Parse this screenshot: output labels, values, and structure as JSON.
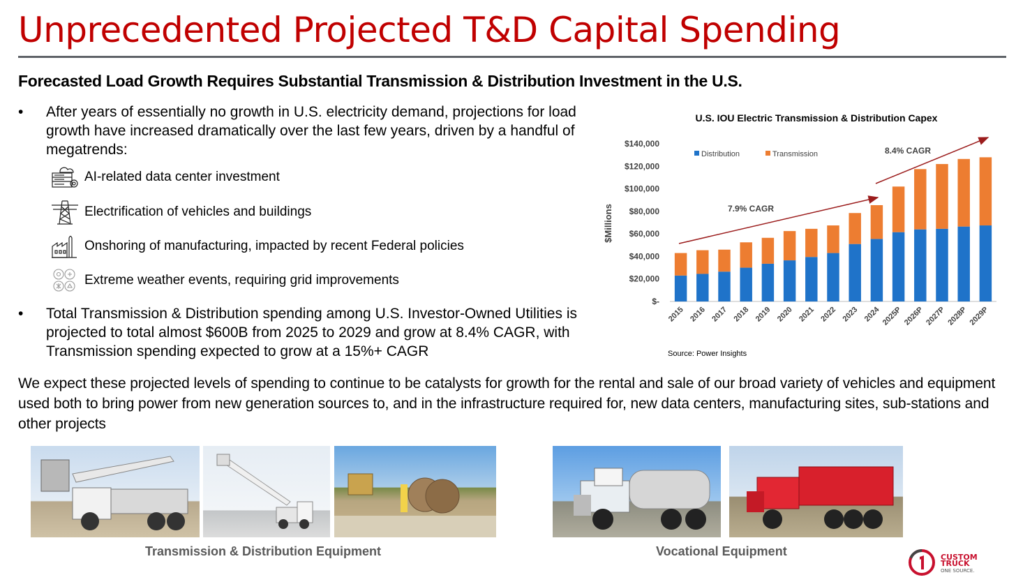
{
  "header": {
    "title": "Unprecedented Projected T&D Capital Spending",
    "subtitle": "Forecasted Load Growth Requires Substantial Transmission & Distribution Investment in the U.S."
  },
  "bullets": [
    {
      "marker": "•",
      "text": "After years of essentially no growth in U.S. electricity demand, projections for load growth have increased dramatically over the last few years, driven by a handful of megatrends:"
    },
    {
      "marker": "•",
      "text": "Total Transmission & Distribution spending among U.S. Investor-Owned Utilities is projected to total almost $600B from 2025 to 2029 and grow at 8.4% CAGR, with Transmission spending expected to grow at a 15%+ CAGR"
    }
  ],
  "megatrends": [
    {
      "icon": "data-center-icon",
      "text": "AI-related data center investment"
    },
    {
      "icon": "transmission-tower-icon",
      "text": "Electrification of vehicles and buildings"
    },
    {
      "icon": "factory-icon",
      "text": "Onshoring of manufacturing, impacted by recent Federal policies"
    },
    {
      "icon": "weather-icon",
      "text": "Extreme weather events, requiring grid improvements"
    }
  ],
  "paragraph": "We expect these projected levels of spending to continue to be catalysts for growth for the rental and sale of our broad variety of vehicles and equipment used both to bring power from new generation sources to, and in the infrastructure required for, new data centers, manufacturing sites, sub-stations and other projects",
  "photos": {
    "group1_caption": "Transmission & Distribution Equipment",
    "group2_caption": "Vocational Equipment"
  },
  "logo": {
    "line1": "CUSTOM",
    "line2": "TRUCK",
    "line3": "ONE SOURCE.",
    "color": "#c8102e"
  },
  "colors": {
    "title": "#c00000",
    "distribution": "#1f73c9",
    "transmission": "#ed7d31",
    "arrow": "#9b1c1c"
  },
  "chart_data": {
    "type": "bar",
    "stacked": true,
    "title": "U.S. IOU Electric Transmission & Distribution Capex",
    "ylabel": "$Millions",
    "xlabel": "",
    "ylim": [
      0,
      140000
    ],
    "yticks": [
      "$-",
      "$20,000",
      "$40,000",
      "$60,000",
      "$80,000",
      "$100,000",
      "$120,000",
      "$140,000"
    ],
    "categories": [
      "2015",
      "2016",
      "2017",
      "2018",
      "2019",
      "2020",
      "2021",
      "2022",
      "2023",
      "2024",
      "2025P",
      "2026P",
      "2027P",
      "2028P",
      "2029P"
    ],
    "series": [
      {
        "name": "Distribution",
        "color": "#1f73c9",
        "values": [
          23000,
          24500,
          26500,
          30000,
          33500,
          36500,
          39500,
          43000,
          51000,
          55500,
          61500,
          64000,
          64500,
          66500,
          67500
        ]
      },
      {
        "name": "Transmission",
        "color": "#ed7d31",
        "values": [
          20000,
          21000,
          19500,
          22500,
          23000,
          26000,
          25000,
          24500,
          27500,
          30000,
          40500,
          53500,
          57500,
          60000,
          60500
        ]
      }
    ],
    "legend": "top-left",
    "grid": false,
    "annotations": [
      {
        "text": "7.9% CAGR",
        "from": "2015",
        "to": "2024"
      },
      {
        "text": "8.4% CAGR",
        "from": "2024",
        "to": "2029P"
      }
    ],
    "source": "Source: Power Insights"
  }
}
